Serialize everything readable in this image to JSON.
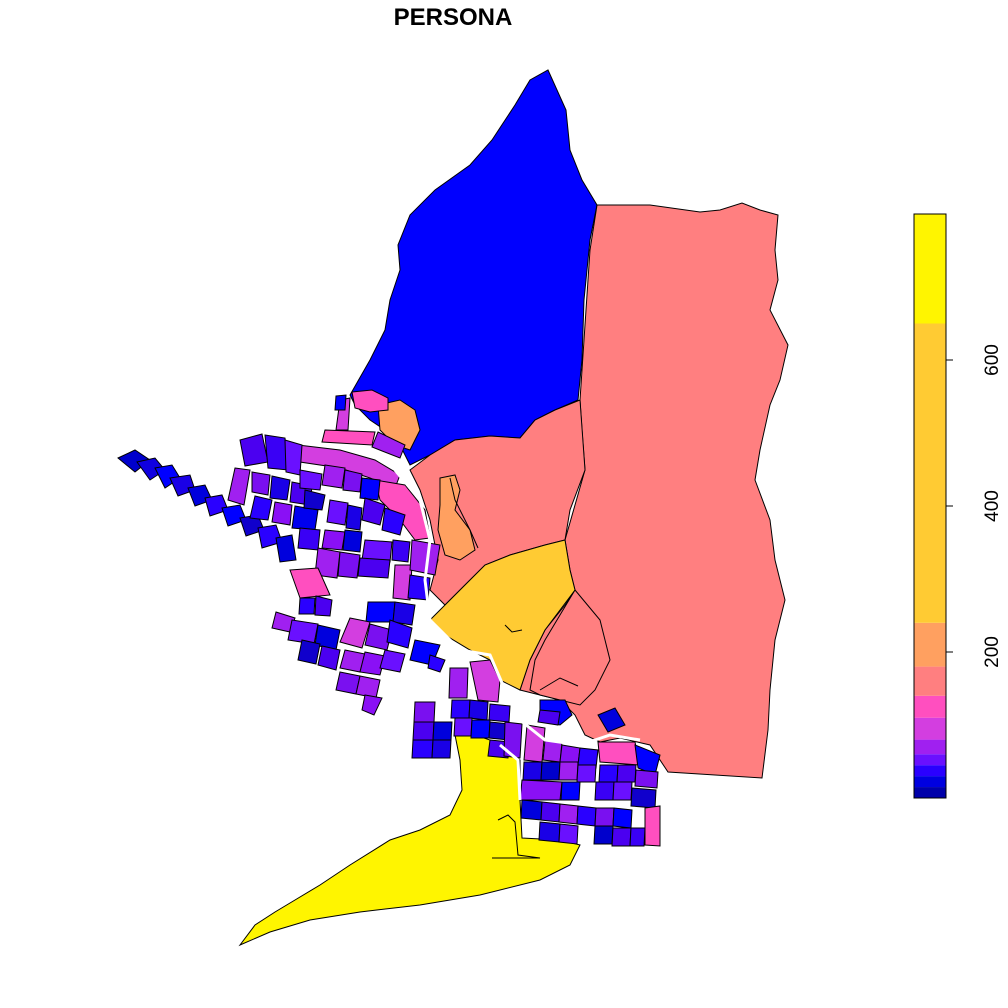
{
  "title": "PERSONA",
  "palette": {
    "blue": "#0000FF",
    "salmon": "#FF7F80",
    "gold": "#FFCB33",
    "yellow": "#FFF500",
    "orange": "#FFA060",
    "magenta": "#FF4FBF",
    "purple": "#A020F0",
    "violet": "#8A10F5",
    "indigo": "#4B00F0",
    "navy": "#0A00C8"
  },
  "legend": {
    "type": "continuous",
    "ticks": [
      "200",
      "400",
      "600"
    ],
    "range": [
      0,
      800
    ],
    "bands": [
      {
        "from": 0,
        "to": 15,
        "color": "#0000AA"
      },
      {
        "from": 15,
        "to": 30,
        "color": "#0000E0"
      },
      {
        "from": 30,
        "to": 45,
        "color": "#2A00FF"
      },
      {
        "from": 45,
        "to": 60,
        "color": "#6A10FF"
      },
      {
        "from": 60,
        "to": 80,
        "color": "#A020F0"
      },
      {
        "from": 80,
        "to": 110,
        "color": "#D33EE0"
      },
      {
        "from": 110,
        "to": 140,
        "color": "#FF4FBF"
      },
      {
        "from": 140,
        "to": 180,
        "color": "#FF7F80"
      },
      {
        "from": 180,
        "to": 240,
        "color": "#FFA060"
      },
      {
        "from": 240,
        "to": 650,
        "color": "#FFCB33"
      },
      {
        "from": 650,
        "to": 800,
        "color": "#FFF500"
      }
    ]
  }
}
